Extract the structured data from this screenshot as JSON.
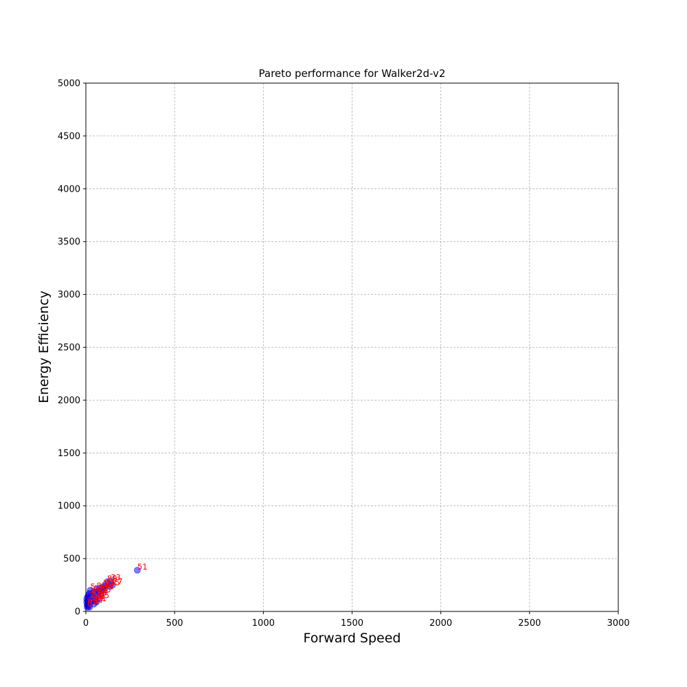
{
  "chart_data": {
    "type": "scatter",
    "title": "Pareto performance for Walker2d-v2",
    "xlabel": "Forward Speed",
    "ylabel": "Energy Efficiency",
    "xlim": [
      0,
      3000
    ],
    "ylim": [
      0,
      5000
    ],
    "xticks": [
      "0",
      "500",
      "1000",
      "1500",
      "2000",
      "2500",
      "3000"
    ],
    "yticks": [
      "0",
      "500",
      "1000",
      "1500",
      "2000",
      "2500",
      "3000",
      "3500",
      "4000",
      "4500",
      "5000"
    ],
    "grid": true,
    "colors": {
      "point": "#0000ff",
      "label": "#ff0000",
      "grid": "#b0b0b0",
      "axis": "#000000"
    },
    "points": [
      {
        "x": 290,
        "y": 390,
        "label": "51"
      },
      {
        "x": 140,
        "y": 290,
        "label": "33"
      },
      {
        "x": 120,
        "y": 280,
        "label": "89"
      },
      {
        "x": 150,
        "y": 250,
        "label": "27"
      },
      {
        "x": 135,
        "y": 240,
        "label": "15"
      },
      {
        "x": 110,
        "y": 240,
        "label": "64"
      },
      {
        "x": 95,
        "y": 230,
        "label": "12"
      },
      {
        "x": 80,
        "y": 215,
        "label": "40"
      },
      {
        "x": 60,
        "y": 210,
        "label": "8"
      },
      {
        "x": 25,
        "y": 200,
        "label": "5"
      },
      {
        "x": 100,
        "y": 200,
        "label": "73"
      },
      {
        "x": 70,
        "y": 190,
        "label": "22"
      },
      {
        "x": 45,
        "y": 185,
        "label": "3"
      },
      {
        "x": 85,
        "y": 175,
        "label": "58"
      },
      {
        "x": 20,
        "y": 170,
        "label": "1"
      },
      {
        "x": 55,
        "y": 160,
        "label": "19"
      },
      {
        "x": 30,
        "y": 150,
        "label": "7"
      },
      {
        "x": 65,
        "y": 145,
        "label": "36"
      },
      {
        "x": 40,
        "y": 130,
        "label": "11"
      },
      {
        "x": 75,
        "y": 120,
        "label": "45"
      },
      {
        "x": 15,
        "y": 120,
        "label": "2"
      },
      {
        "x": 50,
        "y": 110,
        "label": "28"
      },
      {
        "x": 35,
        "y": 100,
        "label": "9"
      },
      {
        "x": 60,
        "y": 90,
        "label": "31"
      },
      {
        "x": 25,
        "y": 85,
        "label": "4"
      },
      {
        "x": 10,
        "y": 70,
        "label": "6"
      },
      {
        "x": 45,
        "y": 70,
        "label": "17"
      },
      {
        "x": 15,
        "y": 50,
        "label": "10"
      },
      {
        "x": 8,
        "y": 40,
        "label": "0"
      },
      {
        "x": 5,
        "y": 120,
        "label": ""
      },
      {
        "x": 5,
        "y": 90,
        "label": ""
      },
      {
        "x": 10,
        "y": 140,
        "label": ""
      },
      {
        "x": 8,
        "y": 60,
        "label": ""
      },
      {
        "x": 20,
        "y": 40,
        "label": ""
      },
      {
        "x": 12,
        "y": 100,
        "label": ""
      },
      {
        "x": 18,
        "y": 160,
        "label": ""
      }
    ]
  }
}
